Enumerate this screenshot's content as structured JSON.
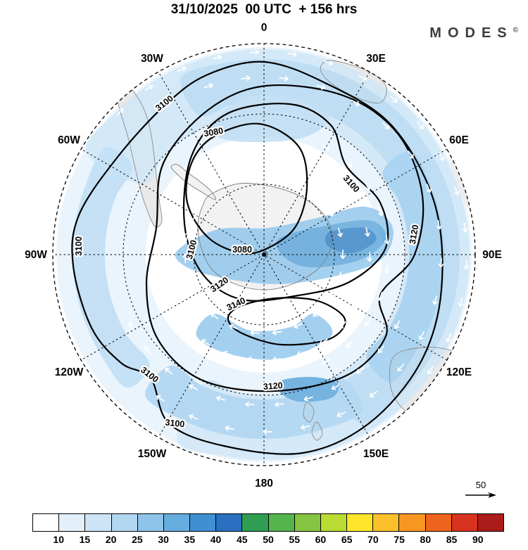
{
  "header": {
    "title": "31/10/2025  00 UTC  + 156 hrs",
    "logo": "MODES",
    "logo_mark": "©"
  },
  "chart_data": {
    "type": "heatmap",
    "projection": "south-polar",
    "title": "31/10/2025  00 UTC  + 156 hrs",
    "angular_ticks": [
      "0",
      "30E",
      "60E",
      "90E",
      "120E",
      "150E",
      "180",
      "150W",
      "120W",
      "90W",
      "60W",
      "30W"
    ],
    "contour_levels": [
      3080,
      3100,
      3120,
      3140
    ],
    "contour_labels": {
      "l3080": "3080",
      "l3100": "3100",
      "l3120": "3120",
      "l3140": "3140"
    },
    "colorbar": {
      "ticks": [
        10,
        15,
        20,
        25,
        30,
        35,
        40,
        45,
        50,
        55,
        60,
        65,
        70,
        75,
        80,
        85,
        90
      ],
      "colors": [
        "#ffffff",
        "#e3f0fa",
        "#cde4f6",
        "#b2d7f1",
        "#8fc4ea",
        "#66ade0",
        "#418fd3",
        "#2a6fc0",
        "#2f9e53",
        "#55b54d",
        "#85c542",
        "#badc33",
        "#ffe62a",
        "#fcc02a",
        "#f79722",
        "#ef641e",
        "#d8331f",
        "#ab1c1a"
      ],
      "position": "bottom"
    },
    "vector_reference": 50,
    "grid": true
  }
}
